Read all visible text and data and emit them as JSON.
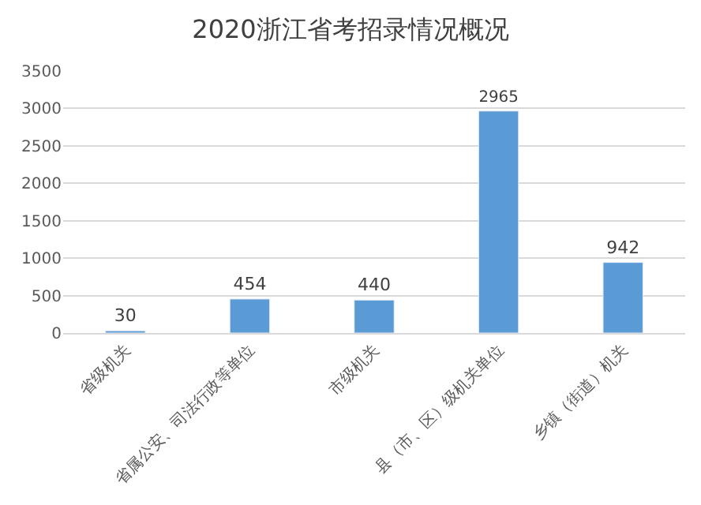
{
  "chart_data": {
    "type": "bar",
    "title": "2020浙江省考招录情况概况",
    "categories": [
      "省级机关",
      "省属公安、司法行政等单位",
      "市级机关",
      "县（市、区）级机关单位",
      "乡镇（街道）机关"
    ],
    "values": [
      30,
      454,
      440,
      2965,
      942
    ],
    "color": "#5b9bd5",
    "ylim": [
      0,
      3500
    ],
    "yticks": [
      0,
      500,
      1000,
      1500,
      2000,
      2500,
      3000,
      3500
    ],
    "grid": "y",
    "data_labels": true,
    "legend": false
  }
}
